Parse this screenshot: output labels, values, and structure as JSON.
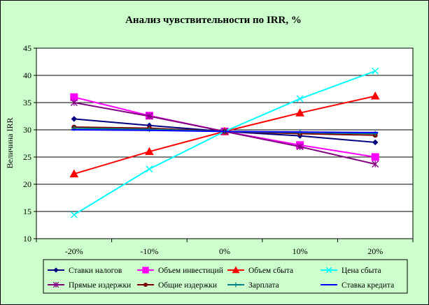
{
  "chart_data": {
    "type": "line",
    "title": "Анализ чувствительности по IRR, %",
    "xlabel": "",
    "ylabel": "Величина IRR",
    "categories": [
      "-20%",
      "-10%",
      "0%",
      "10%",
      "20%"
    ],
    "ylim": [
      10,
      45
    ],
    "yticks": [
      10,
      15,
      20,
      25,
      30,
      35,
      40,
      45
    ],
    "grid": "horizontal",
    "legend_position": "bottom",
    "series": [
      {
        "name": "Ставки налогов",
        "values": [
          32.0,
          30.8,
          29.7,
          28.9,
          27.7
        ],
        "color": "#000080",
        "marker": "diamond"
      },
      {
        "name": "Объем инвестиций",
        "values": [
          36.0,
          32.6,
          29.7,
          27.2,
          25.0
        ],
        "color": "#ff00ff",
        "marker": "square"
      },
      {
        "name": "Объем сбыта",
        "values": [
          21.9,
          26.0,
          29.7,
          33.1,
          36.2
        ],
        "color": "#ff0000",
        "marker": "triangle"
      },
      {
        "name": "Цена сбыта",
        "values": [
          14.4,
          22.8,
          29.7,
          35.7,
          40.8
        ],
        "color": "#00ffff",
        "marker": "x"
      },
      {
        "name": "Прямые издержки",
        "values": [
          35.0,
          32.5,
          29.7,
          26.9,
          23.7
        ],
        "color": "#800080",
        "marker": "star"
      },
      {
        "name": "Общие издержки",
        "values": [
          30.5,
          30.3,
          29.7,
          29.3,
          29.0
        ],
        "color": "#800000",
        "marker": "circle"
      },
      {
        "name": "Зарплата",
        "values": [
          30.3,
          30.1,
          29.7,
          29.5,
          29.3
        ],
        "color": "#008080",
        "marker": "plus"
      },
      {
        "name": "Ставка кредита",
        "values": [
          30.0,
          29.9,
          29.7,
          29.6,
          29.5
        ],
        "color": "#0000ff",
        "marker": "dash"
      }
    ]
  }
}
